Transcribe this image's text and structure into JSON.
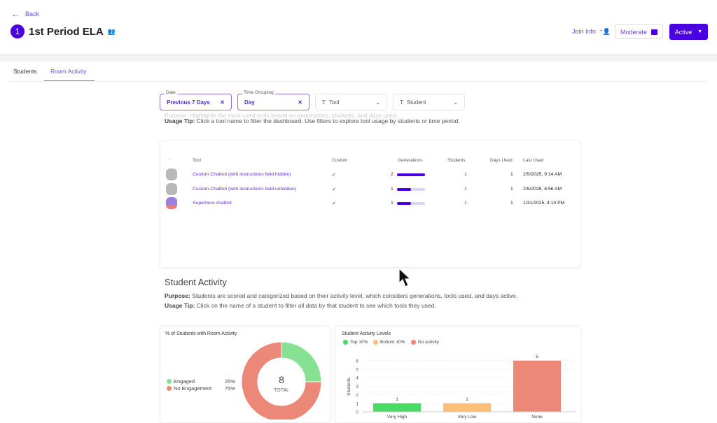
{
  "header": {
    "back": "Back",
    "room_number": "1",
    "title": "1st Period ELA",
    "join_info": "Join Info",
    "moderate": "Moderate",
    "status": "Active"
  },
  "tabs": [
    {
      "label": "Students"
    },
    {
      "label": "Room Activity",
      "active": true
    }
  ],
  "filters": [
    {
      "label": "Date",
      "value": "Previous 7 Days"
    },
    {
      "label": "Time Grouping",
      "value": "Day"
    },
    {
      "placeholder": "Tool"
    },
    {
      "placeholder": "Student"
    }
  ],
  "tools_section": {
    "purpose": "Purpose: Highlights the most used tools based on generations, students, and days used.",
    "tip_label": "Usage Tip:",
    "tip": " Click a tool name to filter the dashboard. Use filters to explore tool usage by students or time period.",
    "columns": [
      "Tool",
      "Custom",
      "Generations",
      "Students",
      "Days Used",
      "Last Used"
    ],
    "rows": [
      {
        "tool": "Custom Chatbot (with instructions field hidden)",
        "custom": "✓",
        "generations": "2",
        "generations_fraction": 1.0,
        "students": "1",
        "days": "1",
        "last_used": "2/5/2025, 9:14 AM",
        "avatar": "robot"
      },
      {
        "tool": "Custom Chatbot (with instructions field unhidden)",
        "custom": "✓",
        "generations": "1",
        "generations_fraction": 0.5,
        "students": "1",
        "days": "1",
        "last_used": "2/5/2025, 8:56 AM",
        "avatar": "robot"
      },
      {
        "tool": "Superhero chatbot",
        "custom": "✓",
        "generations": "1",
        "generations_fraction": 0.5,
        "students": "1",
        "days": "1",
        "last_used": "1/31/2025, 4:10 PM",
        "avatar": "superhero"
      }
    ]
  },
  "student_activity": {
    "title": "Student Activity",
    "purpose_label": "Purpose:",
    "purpose": " Students are scored and categorized based on their activity level, which considers generations, tools used, and days active.",
    "tip_label": "Usage Tip:",
    "tip": " Click on the name of a student to filter all data by that student to see which tools they used."
  },
  "chart_data": [
    {
      "type": "pie",
      "title": "% of Students with Room Activity",
      "center_value": "8",
      "center_label": "TOTAL",
      "slices": [
        {
          "name": "Engaged",
          "value": 25,
          "label": "25%",
          "color": "#86e292"
        },
        {
          "name": "No Engagement",
          "value": 75,
          "label": "75%",
          "color": "#ec8878"
        }
      ],
      "legend": "left"
    },
    {
      "type": "bar",
      "title": "Student Activity Levels",
      "ylabel": "Students",
      "ylim": [
        0,
        6
      ],
      "yticks": [
        "0",
        "1",
        "2",
        "3",
        "4",
        "5",
        "6"
      ],
      "categories": [
        "Very High",
        "Very Low",
        "None"
      ],
      "values": [
        1,
        1,
        6
      ],
      "colors": [
        "#4cd964",
        "#fdbf7a",
        "#ec8878"
      ],
      "legend_entries": [
        {
          "name": "Top 10%",
          "color": "#4cd964"
        },
        {
          "name": "Bottom 10%",
          "color": "#fdbf7a"
        },
        {
          "name": "No activity",
          "color": "#ec8878"
        }
      ],
      "grid": true,
      "legend_position": "top-left"
    }
  ],
  "colors": {
    "accent": "#4b00e0",
    "link": "#6a4fd6"
  }
}
